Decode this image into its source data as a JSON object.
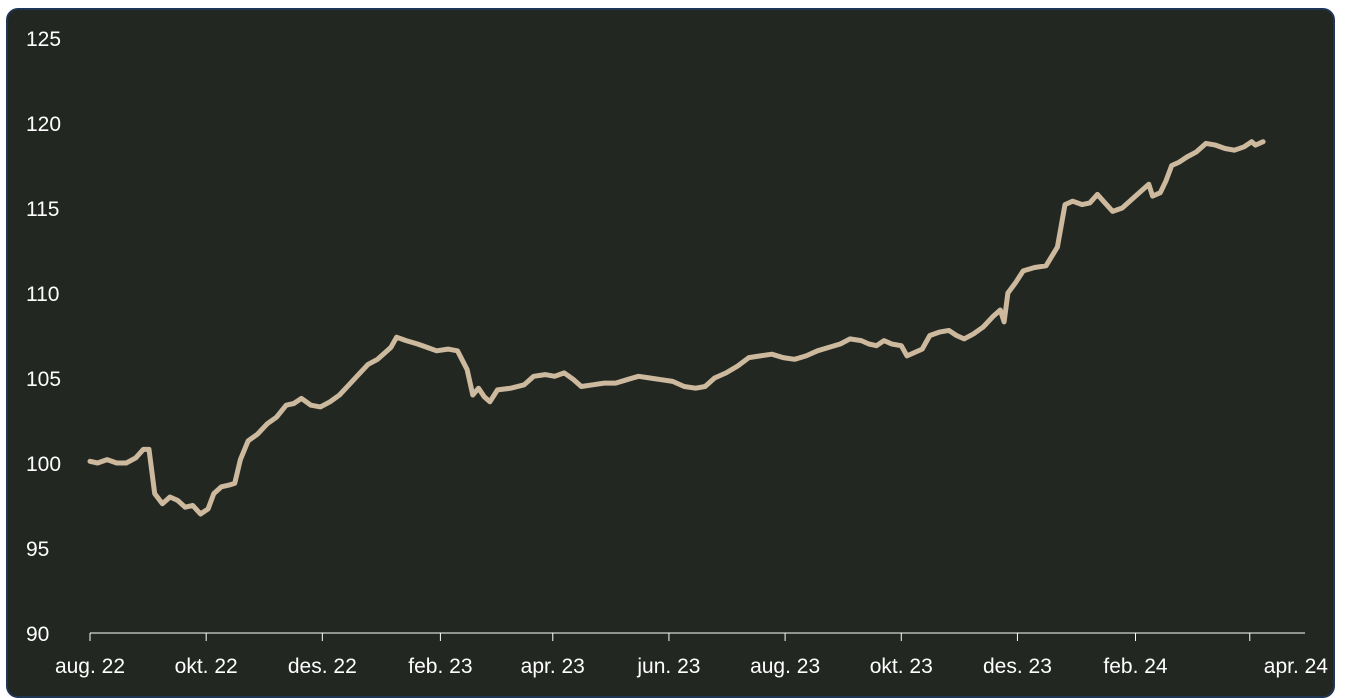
{
  "chart_data": {
    "type": "line",
    "title": "",
    "xlabel": "",
    "ylabel": "",
    "ylim": [
      90,
      125
    ],
    "yticks": [
      90,
      95,
      100,
      105,
      110,
      115,
      120,
      125
    ],
    "xlim": [
      "2022-08-01",
      "2024-04-30"
    ],
    "xticks": [
      {
        "date": "2022-08-01",
        "label": "aug. 22"
      },
      {
        "date": "2022-10-01",
        "label": "okt. 22"
      },
      {
        "date": "2022-12-01",
        "label": "des. 22"
      },
      {
        "date": "2023-02-01",
        "label": "feb. 23"
      },
      {
        "date": "2023-04-01",
        "label": "apr. 23"
      },
      {
        "date": "2023-06-01",
        "label": "jun. 23"
      },
      {
        "date": "2023-08-01",
        "label": "aug. 23"
      },
      {
        "date": "2023-10-01",
        "label": "okt. 23"
      },
      {
        "date": "2023-12-01",
        "label": "des. 23"
      },
      {
        "date": "2024-02-01",
        "label": "feb. 24"
      },
      {
        "date": "2024-04-01",
        "label": "apr. 24"
      }
    ],
    "grid": false,
    "series": [
      {
        "color": "#cdb99d",
        "points": [
          [
            "2022-08-01",
            100.1
          ],
          [
            "2022-08-05",
            100.0
          ],
          [
            "2022-08-10",
            100.2
          ],
          [
            "2022-08-15",
            100.0
          ],
          [
            "2022-08-20",
            100.0
          ],
          [
            "2022-08-25",
            100.3
          ],
          [
            "2022-08-29",
            100.8
          ],
          [
            "2022-09-01",
            100.8
          ],
          [
            "2022-09-04",
            98.2
          ],
          [
            "2022-09-08",
            97.6
          ],
          [
            "2022-09-12",
            98.0
          ],
          [
            "2022-09-16",
            97.8
          ],
          [
            "2022-09-20",
            97.4
          ],
          [
            "2022-09-24",
            97.5
          ],
          [
            "2022-09-28",
            97.0
          ],
          [
            "2022-10-02",
            97.3
          ],
          [
            "2022-10-05",
            98.2
          ],
          [
            "2022-10-09",
            98.6
          ],
          [
            "2022-10-13",
            98.7
          ],
          [
            "2022-10-16",
            98.8
          ],
          [
            "2022-10-19",
            100.2
          ],
          [
            "2022-10-23",
            101.3
          ],
          [
            "2022-10-28",
            101.7
          ],
          [
            "2022-11-02",
            102.3
          ],
          [
            "2022-11-07",
            102.7
          ],
          [
            "2022-11-12",
            103.4
          ],
          [
            "2022-11-16",
            103.5
          ],
          [
            "2022-11-20",
            103.8
          ],
          [
            "2022-11-25",
            103.4
          ],
          [
            "2022-11-30",
            103.3
          ],
          [
            "2022-12-05",
            103.6
          ],
          [
            "2022-12-10",
            104.0
          ],
          [
            "2022-12-15",
            104.6
          ],
          [
            "2022-12-20",
            105.2
          ],
          [
            "2022-12-25",
            105.8
          ],
          [
            "2022-12-30",
            106.1
          ],
          [
            "2023-01-03",
            106.5
          ],
          [
            "2023-01-06",
            106.8
          ],
          [
            "2023-01-09",
            107.4
          ],
          [
            "2023-01-14",
            107.2
          ],
          [
            "2023-01-20",
            107.0
          ],
          [
            "2023-01-25",
            106.8
          ],
          [
            "2023-01-30",
            106.6
          ],
          [
            "2023-02-05",
            106.7
          ],
          [
            "2023-02-10",
            106.6
          ],
          [
            "2023-02-15",
            105.5
          ],
          [
            "2023-02-18",
            104.0
          ],
          [
            "2023-02-21",
            104.4
          ],
          [
            "2023-02-24",
            103.9
          ],
          [
            "2023-02-27",
            103.6
          ],
          [
            "2023-03-03",
            104.3
          ],
          [
            "2023-03-10",
            104.4
          ],
          [
            "2023-03-17",
            104.6
          ],
          [
            "2023-03-22",
            105.1
          ],
          [
            "2023-03-28",
            105.2
          ],
          [
            "2023-04-02",
            105.1
          ],
          [
            "2023-04-07",
            105.3
          ],
          [
            "2023-04-12",
            104.9
          ],
          [
            "2023-04-16",
            104.5
          ],
          [
            "2023-04-22",
            104.6
          ],
          [
            "2023-04-28",
            104.7
          ],
          [
            "2023-05-04",
            104.7
          ],
          [
            "2023-05-10",
            104.9
          ],
          [
            "2023-05-16",
            105.1
          ],
          [
            "2023-05-22",
            105.0
          ],
          [
            "2023-05-28",
            104.9
          ],
          [
            "2023-06-03",
            104.8
          ],
          [
            "2023-06-09",
            104.5
          ],
          [
            "2023-06-15",
            104.4
          ],
          [
            "2023-06-20",
            104.5
          ],
          [
            "2023-06-25",
            105.0
          ],
          [
            "2023-07-01",
            105.3
          ],
          [
            "2023-07-07",
            105.7
          ],
          [
            "2023-07-13",
            106.2
          ],
          [
            "2023-07-19",
            106.3
          ],
          [
            "2023-07-25",
            106.4
          ],
          [
            "2023-07-31",
            106.2
          ],
          [
            "2023-08-06",
            106.1
          ],
          [
            "2023-08-12",
            106.3
          ],
          [
            "2023-08-18",
            106.6
          ],
          [
            "2023-08-24",
            106.8
          ],
          [
            "2023-08-30",
            107.0
          ],
          [
            "2023-09-04",
            107.3
          ],
          [
            "2023-09-10",
            107.2
          ],
          [
            "2023-09-14",
            107.0
          ],
          [
            "2023-09-18",
            106.9
          ],
          [
            "2023-09-22",
            107.2
          ],
          [
            "2023-09-26",
            107.0
          ],
          [
            "2023-10-01",
            106.9
          ],
          [
            "2023-10-04",
            106.3
          ],
          [
            "2023-10-08",
            106.5
          ],
          [
            "2023-10-12",
            106.7
          ],
          [
            "2023-10-16",
            107.5
          ],
          [
            "2023-10-21",
            107.7
          ],
          [
            "2023-10-26",
            107.8
          ],
          [
            "2023-10-30",
            107.5
          ],
          [
            "2023-11-03",
            107.3
          ],
          [
            "2023-11-08",
            107.6
          ],
          [
            "2023-11-13",
            108.0
          ],
          [
            "2023-11-18",
            108.6
          ],
          [
            "2023-11-22",
            109.0
          ],
          [
            "2023-11-24",
            108.3
          ],
          [
            "2023-11-26",
            110.0
          ],
          [
            "2023-11-30",
            110.6
          ],
          [
            "2023-12-04",
            111.3
          ],
          [
            "2023-12-10",
            111.5
          ],
          [
            "2023-12-16",
            111.6
          ],
          [
            "2023-12-22",
            112.7
          ],
          [
            "2023-12-26",
            115.2
          ],
          [
            "2023-12-30",
            115.4
          ],
          [
            "2024-01-04",
            115.2
          ],
          [
            "2024-01-08",
            115.3
          ],
          [
            "2024-01-12",
            115.8
          ],
          [
            "2024-01-16",
            115.3
          ],
          [
            "2024-01-20",
            114.8
          ],
          [
            "2024-01-25",
            115.0
          ],
          [
            "2024-01-30",
            115.5
          ],
          [
            "2024-02-04",
            116.0
          ],
          [
            "2024-02-08",
            116.4
          ],
          [
            "2024-02-10",
            115.7
          ],
          [
            "2024-02-14",
            115.9
          ],
          [
            "2024-02-17",
            116.6
          ],
          [
            "2024-02-20",
            117.5
          ],
          [
            "2024-02-24",
            117.7
          ],
          [
            "2024-02-28",
            118.0
          ],
          [
            "2024-03-04",
            118.3
          ],
          [
            "2024-03-09",
            118.8
          ],
          [
            "2024-03-14",
            118.7
          ],
          [
            "2024-03-19",
            118.5
          ],
          [
            "2024-03-24",
            118.4
          ],
          [
            "2024-03-29",
            118.6
          ],
          [
            "2024-04-02",
            118.9
          ],
          [
            "2024-04-04",
            118.7
          ],
          [
            "2024-04-08",
            118.9
          ]
        ]
      }
    ]
  }
}
